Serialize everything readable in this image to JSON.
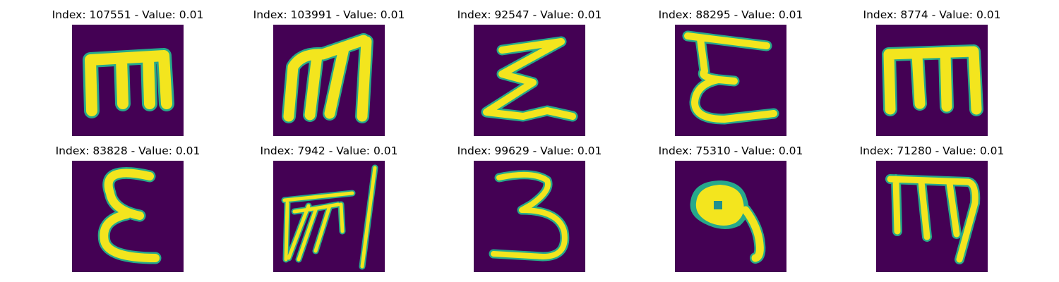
{
  "figure": {
    "panels": [
      {
        "title": "Index: 107551 - Value: 0.01",
        "glyph": "m-block"
      },
      {
        "title": "Index: 103991 - Value: 0.01",
        "glyph": "m-slanted"
      },
      {
        "title": "Index: 92547 - Value: 0.01",
        "glyph": "sigma"
      },
      {
        "title": "Index: 88295 - Value: 0.01",
        "glyph": "epsilon"
      },
      {
        "title": "Index: 8774 - Value: 0.01",
        "glyph": "m-block"
      },
      {
        "title": "Index: 83828 - Value: 0.01",
        "glyph": "epsilon"
      },
      {
        "title": "Index: 7942 - Value: 0.01",
        "glyph": "scribble"
      },
      {
        "title": "Index: 99629 - Value: 0.01",
        "glyph": "three"
      },
      {
        "title": "Index: 75310 - Value: 0.01",
        "glyph": "blob"
      },
      {
        "title": "Index: 71280 - Value: 0.01",
        "glyph": "m-curly"
      }
    ],
    "colors": {
      "background": "#440154",
      "stroke_core": "#f3e51e",
      "stroke_edge": "#26a98b"
    }
  }
}
